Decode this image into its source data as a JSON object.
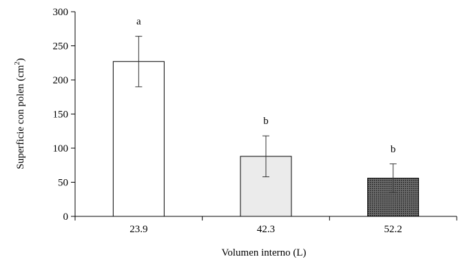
{
  "chart_data": {
    "type": "bar",
    "title": "",
    "xlabel": "Volumen interno (L)",
    "ylabel": {
      "main": "Superficie con polen (cm",
      "superscript": "2",
      "close": ")"
    },
    "categories": [
      "23.9",
      "42.3",
      "52.2"
    ],
    "values": [
      227,
      88,
      56
    ],
    "error": [
      37,
      30,
      21
    ],
    "significance_letters": [
      "a",
      "b",
      "b"
    ],
    "ylim": [
      0,
      300
    ],
    "yticks": [
      "0",
      "50",
      "100",
      "150",
      "200",
      "250",
      "300"
    ],
    "ytick_values": [
      0,
      50,
      100,
      150,
      200,
      250,
      300
    ],
    "grid": false,
    "legend": "none",
    "bar_fills": [
      "#ffffff",
      "#ebebeb",
      "pattern-dark"
    ],
    "colors": {
      "axis": "#000000",
      "bar_outline": "#000000",
      "bar_light": "#ebebeb",
      "bar_dark_base": "#6e6e6e",
      "bar_dark_dots": "#1e1e1e"
    }
  }
}
